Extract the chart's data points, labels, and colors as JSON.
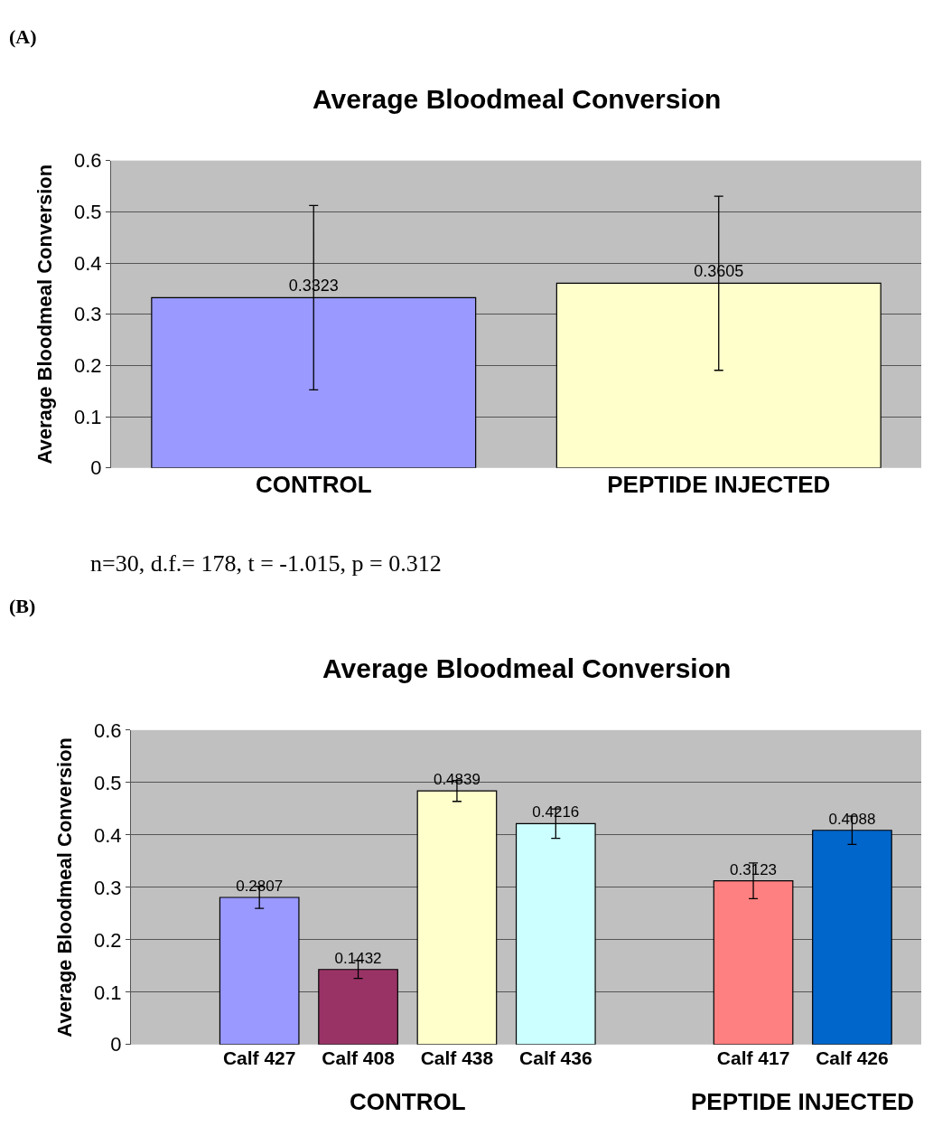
{
  "chart_data": [
    {
      "type": "bar",
      "title": "Average Bloodmeal Conversion",
      "ylabel": "Average Bloodmeal Conversion",
      "categories": [
        "CONTROL",
        "PEPTIDE INJECTED"
      ],
      "values": [
        0.3323,
        0.3605
      ],
      "colors": [
        "#9999ff",
        "#ffffcc"
      ],
      "errors": [
        0.18,
        0.17
      ],
      "data_labels": true,
      "ylim": [
        0,
        0.6
      ],
      "yticks": [
        0,
        0.1,
        0.2,
        0.3,
        0.4,
        0.5,
        0.6
      ],
      "grid": "y",
      "annotations": [
        "(A)",
        "n=30, d.f.= 178, t = -1.015, p = 0.312"
      ]
    },
    {
      "type": "bar",
      "title": "Average Bloodmeal Conversion",
      "ylabel": "Average Bloodmeal Conversion",
      "categories": [
        "Calf 427",
        "Calf 408",
        "Calf 438",
        "Calf 436",
        null,
        "Calf 417",
        "Calf 426"
      ],
      "values": [
        0.2807,
        0.1432,
        0.4839,
        0.4216,
        null,
        0.3123,
        0.4088
      ],
      "colors": [
        "#9999ff",
        "#993366",
        "#ffffcc",
        "#ccffff",
        "#c0c0c0",
        "#ff8080",
        "#0066cc"
      ],
      "errors": [
        0.021,
        0.017,
        0.02,
        0.028,
        null,
        0.034,
        0.027
      ],
      "data_labels": true,
      "ylim": [
        0,
        0.6
      ],
      "yticks": [
        0,
        0.1,
        0.2,
        0.3,
        0.4,
        0.5,
        0.6
      ],
      "grid": "y",
      "annotations": [
        "(B)",
        "CONTROL",
        "PEPTIDE INJECTED"
      ]
    }
  ]
}
